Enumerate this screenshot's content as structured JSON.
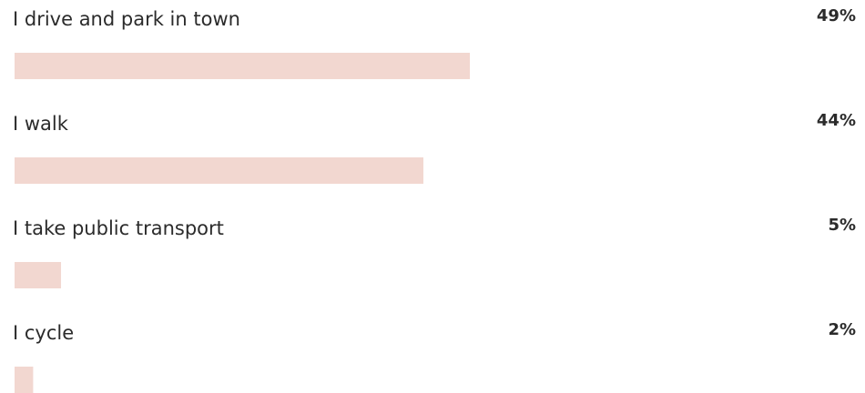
{
  "chart_data": {
    "type": "bar",
    "orientation": "horizontal",
    "categories": [
      "I drive and park in town",
      "I walk",
      "I take public transport",
      "I cycle"
    ],
    "values": [
      49,
      44,
      5,
      2
    ],
    "value_labels": [
      "49%",
      "44%",
      "5%",
      "2%"
    ],
    "color": "#f2d7d0"
  }
}
